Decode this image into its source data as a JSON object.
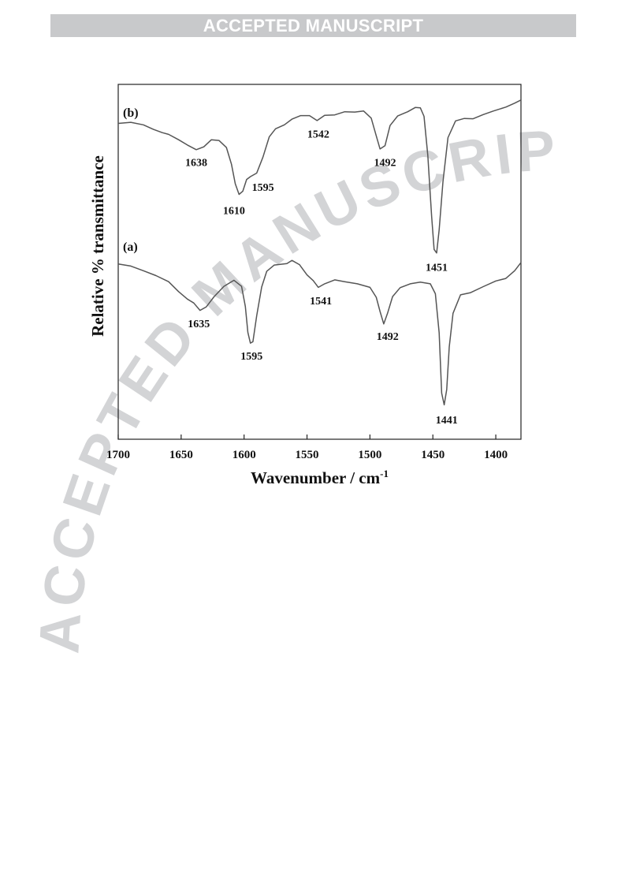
{
  "banner": {
    "text": "ACCEPTED MANUSCRIPT"
  },
  "watermark": {
    "text": "ACCEPTED MANUSCRIPT",
    "color": "#d3d4d6"
  },
  "chart_data": {
    "type": "line",
    "xlabel": "Wavenumber / cm",
    "xlabel_superscript": "-1",
    "ylabel": "Relative % transmittance",
    "xlim": [
      1700,
      1380
    ],
    "x_reversed": true,
    "y_axis_ticks": false,
    "ylim": [
      0,
      100
    ],
    "xticks": [
      1700,
      1650,
      1600,
      1550,
      1500,
      1450,
      1400
    ],
    "grid": false,
    "line_color": "#555555",
    "series": [
      {
        "name": "(b)",
        "baseline": 90,
        "points": [
          [
            1700,
            89
          ],
          [
            1690,
            89.3
          ],
          [
            1680,
            88.6
          ],
          [
            1672,
            87.3
          ],
          [
            1665,
            86.4
          ],
          [
            1660,
            85.9
          ],
          [
            1652,
            84.4
          ],
          [
            1645,
            82.9
          ],
          [
            1638,
            81.6
          ],
          [
            1632,
            82.4
          ],
          [
            1626,
            84.4
          ],
          [
            1620,
            84.2
          ],
          [
            1614,
            82.2
          ],
          [
            1610,
            77.5
          ],
          [
            1607,
            72
          ],
          [
            1604,
            69
          ],
          [
            1601,
            69.9
          ],
          [
            1598,
            73.2
          ],
          [
            1595,
            74
          ],
          [
            1590,
            75
          ],
          [
            1585,
            79.5
          ],
          [
            1580,
            85.2
          ],
          [
            1575,
            87.5
          ],
          [
            1568,
            88.6
          ],
          [
            1562,
            90.2
          ],
          [
            1555,
            91.2
          ],
          [
            1548,
            91.2
          ],
          [
            1542,
            89.8
          ],
          [
            1536,
            91.3
          ],
          [
            1528,
            91.4
          ],
          [
            1520,
            92.3
          ],
          [
            1512,
            92.2
          ],
          [
            1505,
            92.5
          ],
          [
            1499,
            90.5
          ],
          [
            1495,
            85.5
          ],
          [
            1492,
            81.8
          ],
          [
            1488,
            82.7
          ],
          [
            1484,
            88.4
          ],
          [
            1478,
            91.1
          ],
          [
            1470,
            92.3
          ],
          [
            1464,
            93.5
          ],
          [
            1460,
            93.4
          ],
          [
            1457,
            91
          ],
          [
            1454,
            80
          ],
          [
            1451,
            63
          ],
          [
            1449,
            53.5
          ],
          [
            1447,
            52.5
          ],
          [
            1445,
            59
          ],
          [
            1442,
            72.5
          ],
          [
            1438,
            85
          ],
          [
            1432,
            89.7
          ],
          [
            1425,
            90.4
          ],
          [
            1418,
            90.3
          ],
          [
            1410,
            91.5
          ],
          [
            1402,
            92.5
          ],
          [
            1392,
            93.6
          ],
          [
            1385,
            94.7
          ],
          [
            1380,
            95.6
          ]
        ],
        "peaks": [
          1638,
          1610,
          1595,
          1542,
          1492,
          1451
        ]
      },
      {
        "name": "(a)",
        "baseline": 52,
        "points": [
          [
            1700,
            49.4
          ],
          [
            1690,
            48.8
          ],
          [
            1680,
            47.5
          ],
          [
            1670,
            46.1
          ],
          [
            1660,
            44.4
          ],
          [
            1652,
            41.6
          ],
          [
            1645,
            39.5
          ],
          [
            1640,
            38.4
          ],
          [
            1635,
            36.3
          ],
          [
            1630,
            37.3
          ],
          [
            1624,
            40.1
          ],
          [
            1616,
            43.1
          ],
          [
            1608,
            44.8
          ],
          [
            1602,
            43.1
          ],
          [
            1599,
            37.4
          ],
          [
            1597,
            30.1
          ],
          [
            1595,
            27.1
          ],
          [
            1593,
            27.5
          ],
          [
            1590,
            34.8
          ],
          [
            1586,
            42.9
          ],
          [
            1582,
            47.3
          ],
          [
            1576,
            49.1
          ],
          [
            1566,
            49.5
          ],
          [
            1562,
            50.4
          ],
          [
            1556,
            49.2
          ],
          [
            1550,
            46.3
          ],
          [
            1545,
            44.7
          ],
          [
            1541,
            42.8
          ],
          [
            1536,
            43.8
          ],
          [
            1528,
            44.9
          ],
          [
            1520,
            44.4
          ],
          [
            1510,
            43.8
          ],
          [
            1500,
            42.8
          ],
          [
            1495,
            40
          ],
          [
            1492,
            36
          ],
          [
            1489,
            32.5
          ],
          [
            1486,
            35.5
          ],
          [
            1482,
            40.2
          ],
          [
            1476,
            42.7
          ],
          [
            1468,
            43.8
          ],
          [
            1460,
            44.3
          ],
          [
            1452,
            43.8
          ],
          [
            1448,
            41
          ],
          [
            1445,
            30
          ],
          [
            1443,
            13
          ],
          [
            1441,
            9.7
          ],
          [
            1439,
            14
          ],
          [
            1437,
            26
          ],
          [
            1434,
            35.5
          ],
          [
            1428,
            40.7
          ],
          [
            1420,
            41.3
          ],
          [
            1410,
            43
          ],
          [
            1400,
            44.6
          ],
          [
            1392,
            45.3
          ],
          [
            1385,
            47.5
          ],
          [
            1380,
            49.8
          ]
        ],
        "peaks": [
          1635,
          1595,
          1541,
          1492,
          1441
        ]
      }
    ],
    "annotations": [
      {
        "text": "1638",
        "x": 1638,
        "y": 77
      },
      {
        "text": "1610",
        "x": 1608,
        "y": 63.5
      },
      {
        "text": "1595",
        "x": 1585,
        "y": 70
      },
      {
        "text": "1542",
        "x": 1541,
        "y": 85
      },
      {
        "text": "1492",
        "x": 1488,
        "y": 77
      },
      {
        "text": "1451",
        "x": 1447,
        "y": 47.5
      },
      {
        "text": "1635",
        "x": 1636,
        "y": 31.6
      },
      {
        "text": "1595",
        "x": 1594,
        "y": 22.5
      },
      {
        "text": "1541",
        "x": 1539,
        "y": 38
      },
      {
        "text": "1492",
        "x": 1486,
        "y": 28
      },
      {
        "text": "1441",
        "x": 1439,
        "y": 4.5
      }
    ]
  }
}
